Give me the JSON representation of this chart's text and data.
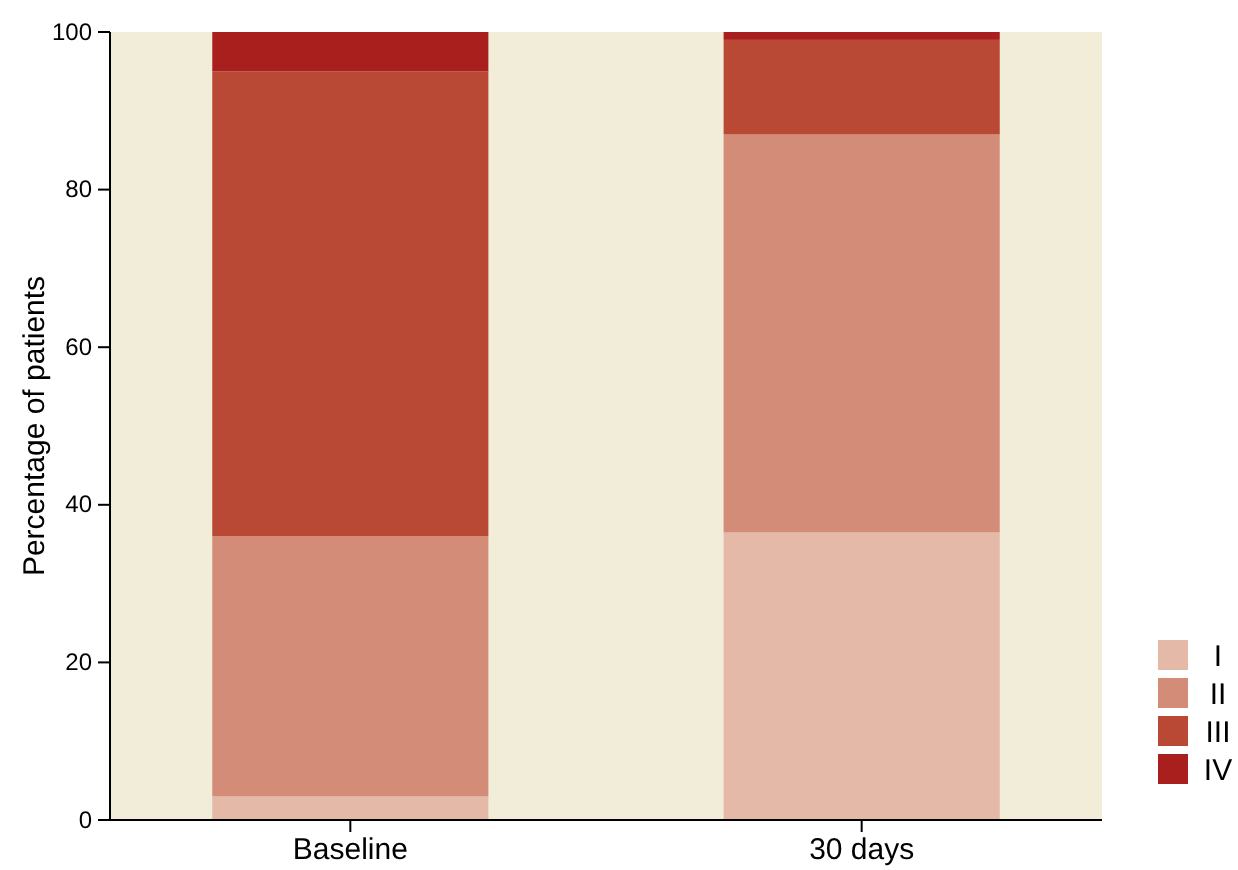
{
  "chart_data": {
    "type": "bar",
    "stacked": true,
    "ylabel": "Percentage of patients",
    "categories": [
      "Baseline",
      "30 days"
    ],
    "series": [
      {
        "name": "I",
        "color": "#e4b9a8",
        "values": [
          3,
          36.5
        ]
      },
      {
        "name": "II",
        "color": "#d38c77",
        "values": [
          33,
          50.5
        ]
      },
      {
        "name": "III",
        "color": "#b94834",
        "values": [
          59,
          12
        ]
      },
      {
        "name": "IV",
        "color": "#a91f1e",
        "values": [
          5,
          1
        ]
      }
    ],
    "ylim": [
      0,
      100
    ],
    "yticks": [
      0,
      20,
      40,
      60,
      80,
      100
    ],
    "grid": false,
    "legend": "bottom right"
  }
}
